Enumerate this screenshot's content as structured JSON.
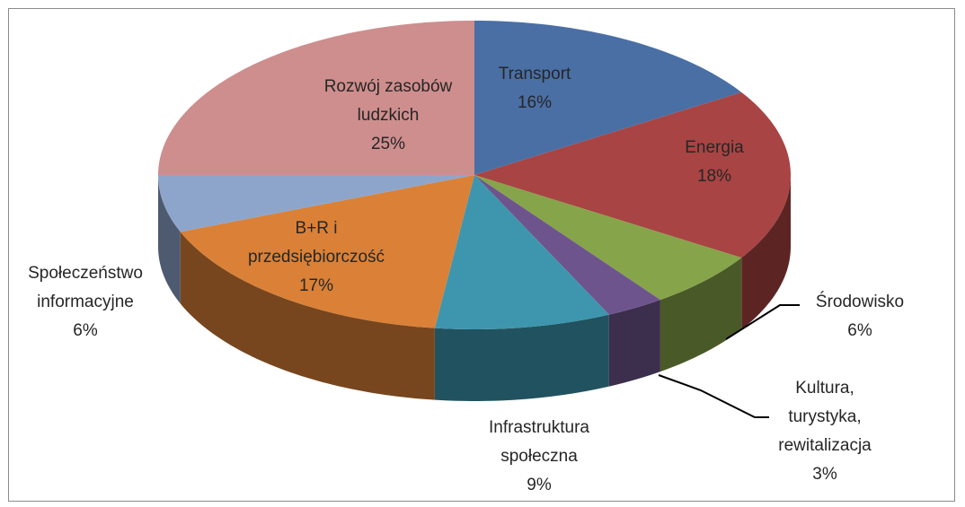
{
  "chart_data": {
    "type": "pie3d",
    "categories": [
      "Transport",
      "Energia",
      "Środowisko",
      "Kultura,\nturystyka,\nrewitalizacja",
      "Infrastruktura\nspołeczna",
      "B+R i\nprzedsiębiorczość",
      "Społeczeństwo\ninformacyjne",
      "Rozwój zasobów\nludzkich"
    ],
    "values": [
      16,
      18,
      6,
      3,
      9,
      17,
      6,
      25
    ],
    "value_labels": [
      "16%",
      "18%",
      "6%",
      "3%",
      "9%",
      "17%",
      "6%",
      "25%"
    ],
    "colors": [
      "#4a6fa5",
      "#a84443",
      "#86a44a",
      "#6e548d",
      "#3d96ae",
      "#da8137",
      "#8ea5cb",
      "#ce8e8d"
    ]
  }
}
